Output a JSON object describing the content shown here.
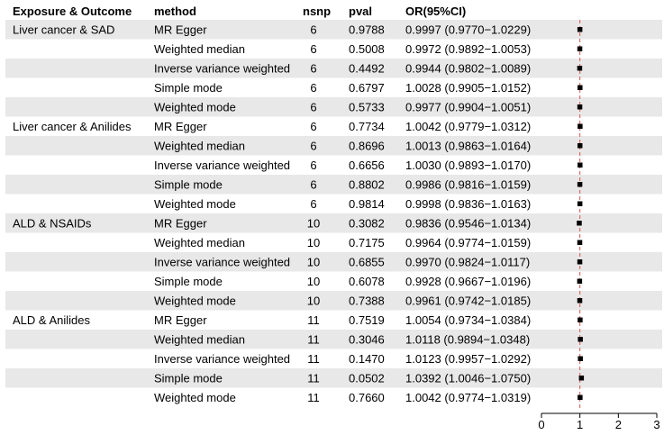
{
  "headers": {
    "exposure_outcome": "Exposure & Outcome",
    "method": "method",
    "nsnp": "nsnp",
    "pval": "pval",
    "or": "OR(95%CI)"
  },
  "colors": {
    "stripe": "#e8e8e8",
    "background": "#ffffff",
    "point": "#000000",
    "reference_line": "#d9534f"
  },
  "chart_data": {
    "type": "forest",
    "reference_line": 1,
    "xlim": [
      0,
      3
    ],
    "x_ticks": [
      "0",
      "1",
      "2",
      "3"
    ],
    "x_tick_values": [
      0,
      1,
      2,
      3
    ],
    "rows": [
      {
        "group": "Liver cancer & SAD",
        "method": "MR Egger",
        "nsnp": "6",
        "pval": "0.9788",
        "or_text": "0.9997 (0.9770−1.0229)",
        "or": 0.9997,
        "lo": 0.977,
        "hi": 1.0229
      },
      {
        "group": "",
        "method": "Weighted median",
        "nsnp": "6",
        "pval": "0.5008",
        "or_text": "0.9972 (0.9892−1.0053)",
        "or": 0.9972,
        "lo": 0.9892,
        "hi": 1.0053
      },
      {
        "group": "",
        "method": "Inverse variance weighted",
        "nsnp": "6",
        "pval": "0.4492",
        "or_text": "0.9944 (0.9802−1.0089)",
        "or": 0.9944,
        "lo": 0.9802,
        "hi": 1.0089
      },
      {
        "group": "",
        "method": "Simple mode",
        "nsnp": "6",
        "pval": "0.6797",
        "or_text": "1.0028 (0.9905−1.0152)",
        "or": 1.0028,
        "lo": 0.9905,
        "hi": 1.0152
      },
      {
        "group": "",
        "method": "Weighted mode",
        "nsnp": "6",
        "pval": "0.5733",
        "or_text": "0.9977 (0.9904−1.0051)",
        "or": 0.9977,
        "lo": 0.9904,
        "hi": 1.0051
      },
      {
        "group": "Liver cancer & Anilides",
        "method": "MR Egger",
        "nsnp": "6",
        "pval": "0.7734",
        "or_text": "1.0042 (0.9779−1.0312)",
        "or": 1.0042,
        "lo": 0.9779,
        "hi": 1.0312
      },
      {
        "group": "",
        "method": "Weighted median",
        "nsnp": "6",
        "pval": "0.8696",
        "or_text": "1.0013 (0.9863−1.0164)",
        "or": 1.0013,
        "lo": 0.9863,
        "hi": 1.0164
      },
      {
        "group": "",
        "method": "Inverse variance weighted",
        "nsnp": "6",
        "pval": "0.6656",
        "or_text": "1.0030 (0.9893−1.0170)",
        "or": 1.003,
        "lo": 0.9893,
        "hi": 1.017
      },
      {
        "group": "",
        "method": "Simple mode",
        "nsnp": "6",
        "pval": "0.8802",
        "or_text": "0.9986 (0.9816−1.0159)",
        "or": 0.9986,
        "lo": 0.9816,
        "hi": 1.0159
      },
      {
        "group": "",
        "method": "Weighted mode",
        "nsnp": "6",
        "pval": "0.9814",
        "or_text": "0.9998 (0.9836−1.0163)",
        "or": 0.9998,
        "lo": 0.9836,
        "hi": 1.0163
      },
      {
        "group": "ALD & NSAIDs",
        "method": "MR Egger",
        "nsnp": "10",
        "pval": "0.3082",
        "or_text": "0.9836 (0.9546−1.0134)",
        "or": 0.9836,
        "lo": 0.9546,
        "hi": 1.0134
      },
      {
        "group": "",
        "method": "Weighted median",
        "nsnp": "10",
        "pval": "0.7175",
        "or_text": "0.9964 (0.9774−1.0159)",
        "or": 0.9964,
        "lo": 0.9774,
        "hi": 1.0159
      },
      {
        "group": "",
        "method": "Inverse variance weighted",
        "nsnp": "10",
        "pval": "0.6855",
        "or_text": "0.9970 (0.9824−1.0117)",
        "or": 0.997,
        "lo": 0.9824,
        "hi": 1.0117
      },
      {
        "group": "",
        "method": "Simple mode",
        "nsnp": "10",
        "pval": "0.6078",
        "or_text": "0.9928 (0.9667−1.0196)",
        "or": 0.9928,
        "lo": 0.9667,
        "hi": 1.0196
      },
      {
        "group": "",
        "method": "Weighted mode",
        "nsnp": "10",
        "pval": "0.7388",
        "or_text": "0.9961 (0.9742−1.0185)",
        "or": 0.9961,
        "lo": 0.9742,
        "hi": 1.0185
      },
      {
        "group": "ALD & Anilides",
        "method": "MR Egger",
        "nsnp": "11",
        "pval": "0.7519",
        "or_text": "1.0054 (0.9734−1.0384)",
        "or": 1.0054,
        "lo": 0.9734,
        "hi": 1.0384
      },
      {
        "group": "",
        "method": "Weighted median",
        "nsnp": "11",
        "pval": "0.3046",
        "or_text": "1.0118 (0.9894−1.0348)",
        "or": 1.0118,
        "lo": 0.9894,
        "hi": 1.0348
      },
      {
        "group": "",
        "method": "Inverse variance weighted",
        "nsnp": "11",
        "pval": "0.1470",
        "or_text": "1.0123 (0.9957−1.0292)",
        "or": 1.0123,
        "lo": 0.9957,
        "hi": 1.0292
      },
      {
        "group": "",
        "method": "Simple mode",
        "nsnp": "11",
        "pval": "0.0502",
        "or_text": "1.0392 (1.0046−1.0750)",
        "or": 1.0392,
        "lo": 1.0046,
        "hi": 1.075
      },
      {
        "group": "",
        "method": "Weighted mode",
        "nsnp": "11",
        "pval": "0.7660",
        "or_text": "1.0042 (0.9774−1.0319)",
        "or": 1.0042,
        "lo": 0.9774,
        "hi": 1.0319
      }
    ]
  }
}
